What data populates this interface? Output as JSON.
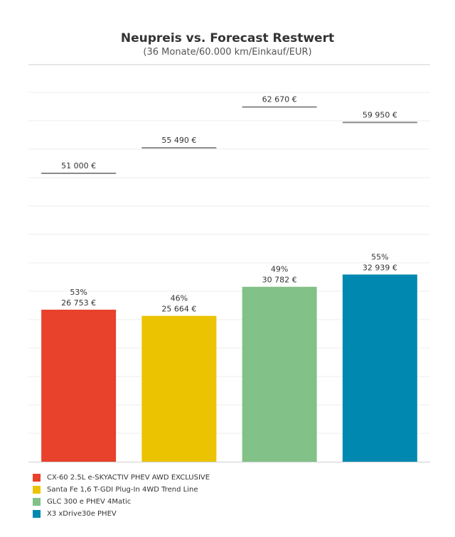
{
  "chart_data": {
    "type": "bar",
    "title": "Neupreis vs. Forecast Restwert",
    "subtitle": "(36 Monate/60.000 km/Einkauf/EUR)",
    "xlabel": "",
    "ylabel": "",
    "ylim": [
      0,
      70000
    ],
    "grid": true,
    "legend_position": "bottom-left",
    "categories": [
      "CX-60 2.5L e-SKYACTIV PHEV AWD EXCLUSIVE",
      "Santa Fe 1,6 T-GDI Plug-In 4WD Trend Line",
      "GLC 300 e PHEV 4Matic",
      "X3 xDrive30e PHEV"
    ],
    "colors": [
      "#e8412c",
      "#ecc300",
      "#82c187",
      "#0088b0"
    ],
    "series": [
      {
        "name": "Forecast Restwert",
        "type": "bar",
        "values": [
          26753,
          25664,
          30782,
          32939
        ],
        "labels": [
          "26 753 €",
          "25 664 €",
          "30 782 €",
          "32 939 €"
        ],
        "percent_labels": [
          "53%",
          "46%",
          "49%",
          "55%"
        ]
      },
      {
        "name": "Neupreis",
        "type": "reference-line",
        "values": [
          51000,
          55490,
          62670,
          59950
        ],
        "labels": [
          "51 000 €",
          "55 490 €",
          "62 670 €",
          "59 950 €"
        ]
      }
    ]
  }
}
